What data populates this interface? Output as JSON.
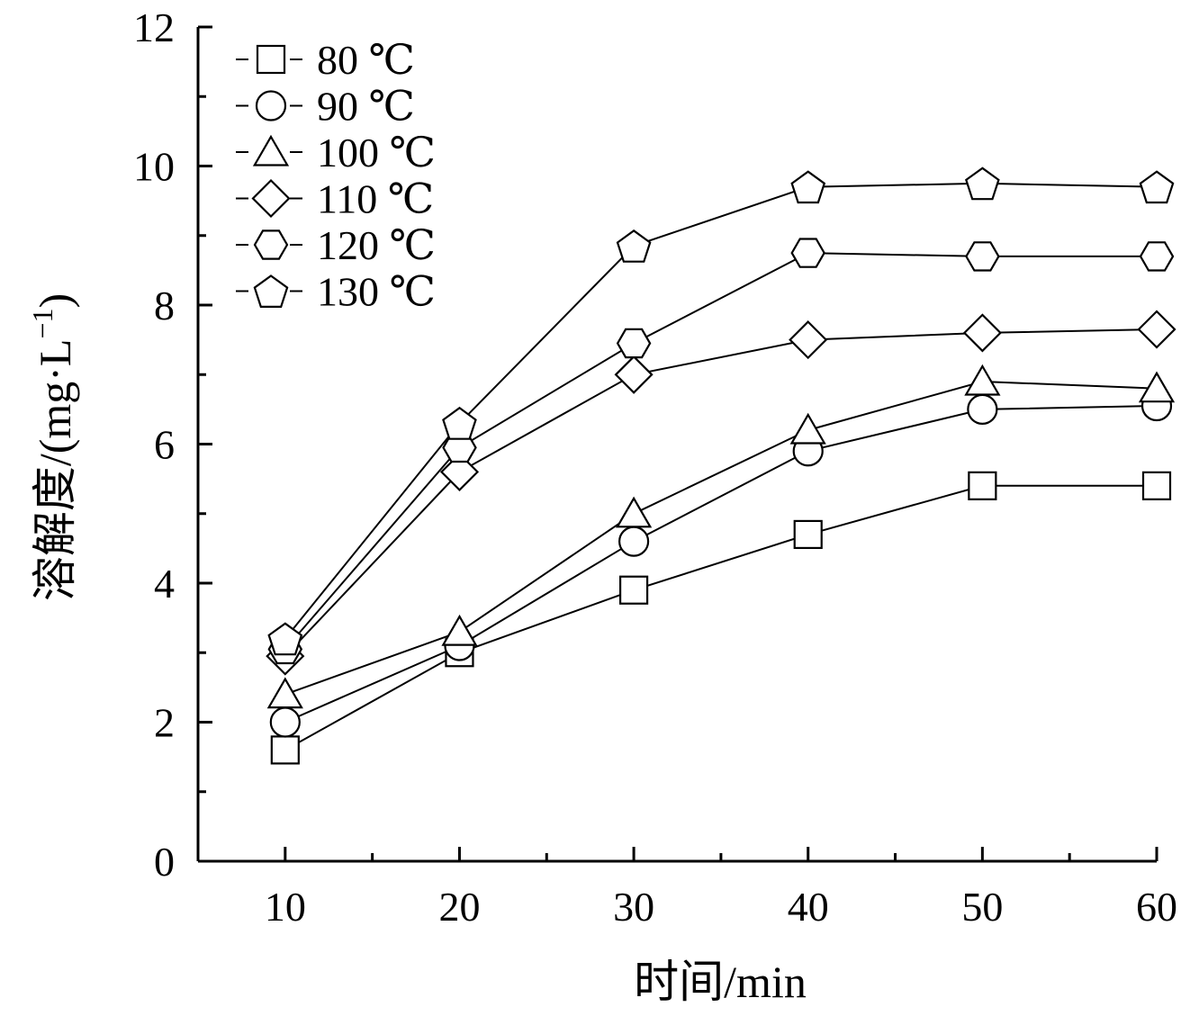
{
  "chart_data": {
    "type": "line",
    "xlabel": "时间/min",
    "ylabel": "溶解度/(mg·L",
    "ylabel_sup": "−1",
    "ylabel_tail": ")",
    "xlim": [
      5,
      60
    ],
    "ylim": [
      0,
      12
    ],
    "x_ticks": [
      10,
      20,
      30,
      40,
      50,
      60
    ],
    "y_ticks": [
      0,
      2,
      4,
      6,
      8,
      10,
      12
    ],
    "x": [
      10,
      20,
      30,
      40,
      50,
      60
    ],
    "grid": false,
    "legend_position": "top-left",
    "series": [
      {
        "name": "80 ℃",
        "marker": "square",
        "values": [
          1.6,
          3.0,
          3.9,
          4.7,
          5.4,
          5.4
        ]
      },
      {
        "name": "90 ℃",
        "marker": "circle",
        "values": [
          2.0,
          3.1,
          4.6,
          5.9,
          6.5,
          6.55
        ]
      },
      {
        "name": "100 ℃",
        "marker": "triangle",
        "values": [
          2.4,
          3.3,
          5.0,
          6.2,
          6.9,
          6.8
        ]
      },
      {
        "name": "110 ℃",
        "marker": "diamond",
        "values": [
          2.95,
          5.6,
          7.0,
          7.5,
          7.6,
          7.65
        ]
      },
      {
        "name": "120 ℃",
        "marker": "hexagon",
        "values": [
          3.05,
          5.95,
          7.45,
          8.75,
          8.7,
          8.7
        ]
      },
      {
        "name": "130 ℃",
        "marker": "pentagon",
        "values": [
          3.2,
          6.3,
          8.85,
          9.7,
          9.75,
          9.7
        ]
      }
    ]
  }
}
